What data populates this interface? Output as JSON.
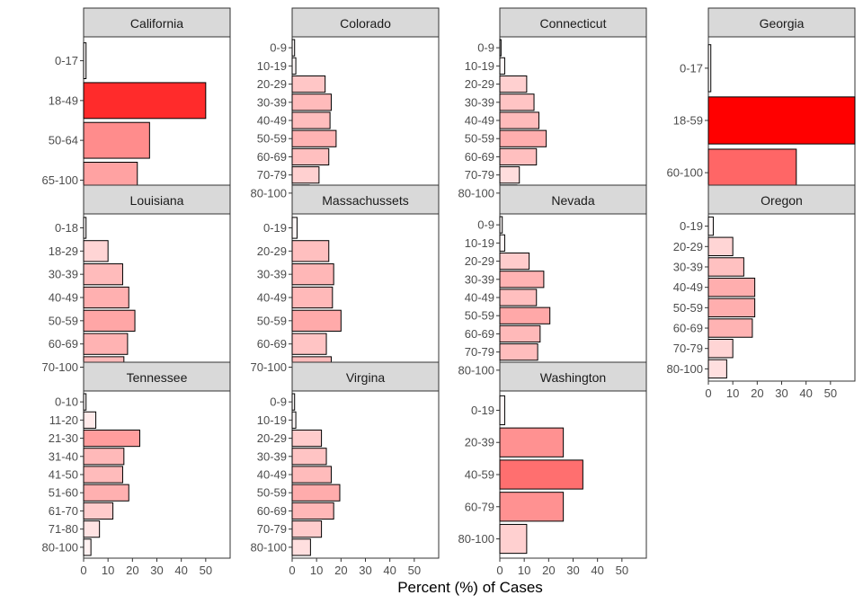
{
  "chart_data": {
    "type": "bar",
    "orientation": "horizontal",
    "xlabel": "Percent (%) of Cases",
    "ylabel": "",
    "xlim": [
      0,
      60
    ],
    "xticks": [
      0,
      10,
      20,
      30,
      40,
      50
    ],
    "grid": false,
    "legend": "none",
    "fill_scale": {
      "low": "#ffffff",
      "high": "#ff0000"
    },
    "panels": [
      {
        "title": "California",
        "categories": [
          "0-17",
          "18-49",
          "50-64",
          "65-100"
        ],
        "values": [
          1,
          50,
          27,
          22
        ]
      },
      {
        "title": "Colorado",
        "categories": [
          "0-9",
          "10-19",
          "20-29",
          "30-39",
          "40-49",
          "50-59",
          "60-69",
          "70-79",
          "80-100"
        ],
        "values": [
          1,
          1.5,
          13.5,
          16,
          15.5,
          18,
          15,
          11,
          7
        ]
      },
      {
        "title": "Connecticut",
        "categories": [
          "0-9",
          "10-19",
          "20-29",
          "30-39",
          "40-49",
          "50-59",
          "60-69",
          "70-79",
          "80-100"
        ],
        "values": [
          0.5,
          2,
          11,
          14,
          16,
          19,
          15,
          8,
          7
        ]
      },
      {
        "title": "Georgia",
        "categories": [
          "0-17",
          "18-59",
          "60-100"
        ],
        "values": [
          1,
          60,
          36
        ]
      },
      {
        "title": "Louisiana",
        "categories": [
          "0-18",
          "18-29",
          "30-39",
          "40-49",
          "50-59",
          "60-69",
          "70-100"
        ],
        "values": [
          1,
          10,
          16,
          18.5,
          21,
          18,
          16.5
        ]
      },
      {
        "title": "Massachussets",
        "categories": [
          "0-19",
          "20-29",
          "30-39",
          "40-49",
          "50-59",
          "60-69",
          "70-100"
        ],
        "values": [
          2,
          15,
          17,
          16.5,
          20,
          14,
          16
        ]
      },
      {
        "title": "Nevada",
        "categories": [
          "0-9",
          "10-19",
          "20-29",
          "30-39",
          "40-49",
          "50-59",
          "60-69",
          "70-79",
          "80-100"
        ],
        "values": [
          1,
          2,
          12,
          18,
          15,
          20.5,
          16.5,
          15.5,
          0
        ]
      },
      {
        "title": "Oregon",
        "categories": [
          "0-19",
          "20-29",
          "30-39",
          "40-49",
          "50-59",
          "60-69",
          "70-79",
          "80-100"
        ],
        "values": [
          2,
          10,
          14.5,
          19,
          19,
          18,
          10,
          7.5
        ]
      },
      {
        "title": "Tennessee",
        "categories": [
          "0-10",
          "11-20",
          "21-30",
          "31-40",
          "41-50",
          "51-60",
          "61-70",
          "71-80",
          "80-100"
        ],
        "values": [
          1,
          5,
          23,
          16.5,
          16,
          18.5,
          12,
          6.5,
          3
        ]
      },
      {
        "title": "Virgina",
        "categories": [
          "0-9",
          "10-19",
          "20-29",
          "30-39",
          "40-49",
          "50-59",
          "60-69",
          "70-79",
          "80-100"
        ],
        "values": [
          1,
          1.5,
          12,
          14,
          16,
          19.5,
          17,
          12,
          7.5
        ]
      },
      {
        "title": "Washington",
        "categories": [
          "0-19",
          "20-39",
          "40-59",
          "60-79",
          "80-100"
        ],
        "values": [
          2,
          26,
          34,
          26,
          11
        ]
      }
    ]
  }
}
